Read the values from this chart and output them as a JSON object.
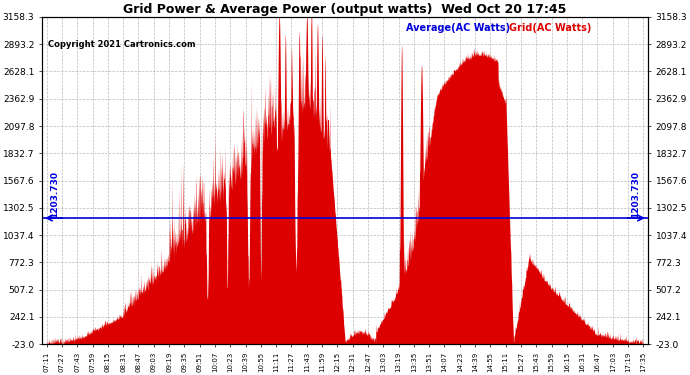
{
  "title": "Grid Power & Average Power (output watts)  Wed Oct 20 17:45",
  "copyright": "Copyright 2021 Cartronics.com",
  "legend_avg": "Average(AC Watts)",
  "legend_grid": "Grid(AC Watts)",
  "avg_value": 1203.73,
  "avg_label": "1203.730",
  "y_min": -23.0,
  "y_max": 3158.3,
  "yticks": [
    -23.0,
    242.1,
    507.2,
    772.3,
    1037.4,
    1302.5,
    1567.6,
    1832.7,
    2097.8,
    2362.9,
    2628.1,
    2893.2,
    3158.3
  ],
  "background_color": "#ffffff",
  "fill_color": "#dd0000",
  "avg_line_color": "#0000dd",
  "grid_color": "#bbbbbb",
  "title_color": "#000000",
  "copyright_color": "#000000",
  "x_labels": [
    "07:11",
    "07:27",
    "07:43",
    "07:59",
    "08:15",
    "08:31",
    "08:47",
    "09:03",
    "09:19",
    "09:35",
    "09:51",
    "10:07",
    "10:23",
    "10:39",
    "10:55",
    "11:11",
    "11:27",
    "11:43",
    "11:59",
    "12:15",
    "12:31",
    "12:47",
    "13:03",
    "13:19",
    "13:35",
    "13:51",
    "14:07",
    "14:23",
    "14:39",
    "14:55",
    "15:11",
    "15:27",
    "15:43",
    "15:59",
    "16:15",
    "16:31",
    "16:47",
    "17:03",
    "17:19",
    "17:35"
  ]
}
